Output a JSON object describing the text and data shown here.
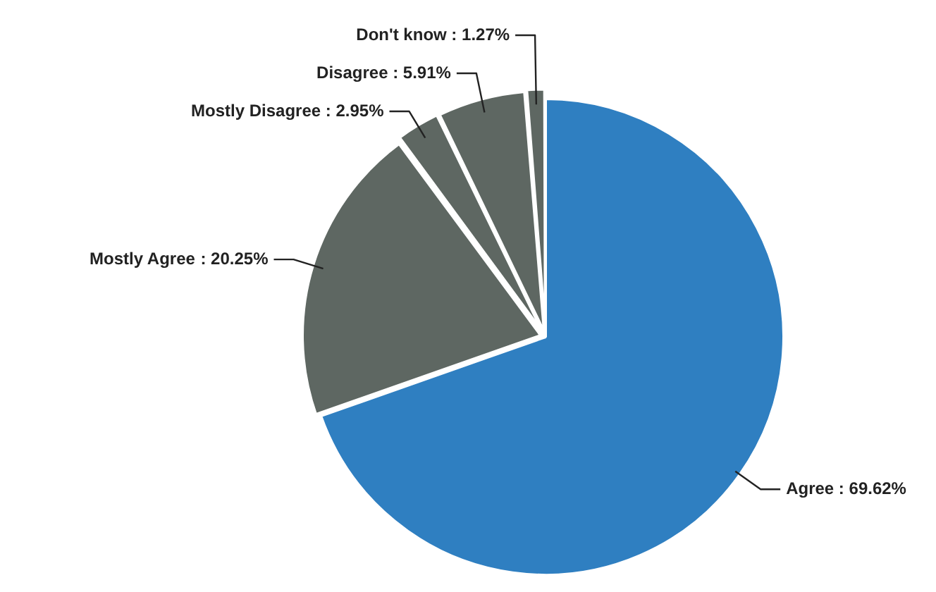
{
  "chart_data": {
    "type": "pie",
    "categories": [
      "Agree",
      "Mostly Agree",
      "Mostly Disagree",
      "Disagree",
      "Don't know"
    ],
    "values": [
      69.62,
      20.25,
      2.95,
      5.91,
      1.27
    ],
    "value_labels": [
      ": 69.62%",
      ": 20.25%",
      ": 2.95%",
      ": 5.91%",
      ": 1.27%"
    ],
    "colors": [
      "#2f7fc1",
      "#5e6762",
      "#5e6762",
      "#5e6762",
      "#5e6762"
    ],
    "legend": false
  }
}
